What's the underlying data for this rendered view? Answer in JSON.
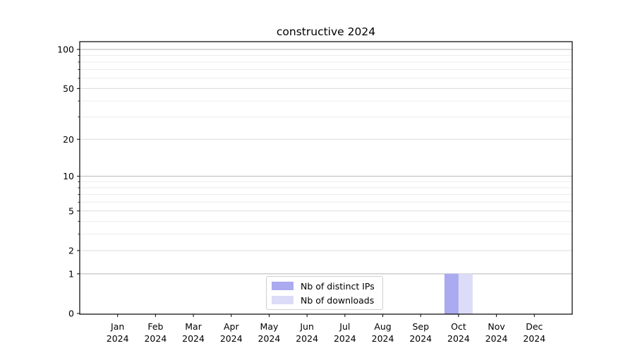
{
  "chart_data": {
    "type": "bar",
    "title": "constructive 2024",
    "categories": [
      "Jan",
      "Feb",
      "Mar",
      "Apr",
      "May",
      "Jun",
      "Jul",
      "Aug",
      "Sep",
      "Oct",
      "Nov",
      "Dec"
    ],
    "year_label": "2024",
    "series": [
      {
        "name": "Nb of distinct IPs",
        "color": "#aaaaf0",
        "values": [
          0,
          0,
          0,
          0,
          0,
          0,
          0,
          0,
          0,
          1,
          0,
          0
        ]
      },
      {
        "name": "Nb of downloads",
        "color": "#dcdcf8",
        "values": [
          0,
          0,
          0,
          0,
          0,
          0,
          0,
          0,
          0,
          1,
          0,
          0
        ]
      }
    ],
    "xlabel": "",
    "ylabel": "",
    "yscale": "log1p",
    "ylim": [
      0,
      115
    ],
    "y_ticks_labeled": [
      0,
      1,
      2,
      5,
      10,
      20,
      50,
      100
    ],
    "y_ticks_power": [
      1,
      10,
      100
    ],
    "y_ticks_minor": [
      3,
      4,
      6,
      7,
      8,
      9,
      30,
      40,
      60,
      70,
      80,
      90
    ],
    "grid": "horizontal-only",
    "legend_position": "lower-center-inside",
    "colors": {
      "grid_power": "#b5b5b5",
      "grid_major": "#dcdcdc",
      "grid_minor": "#ececec",
      "axis": "#000000",
      "text": "#000000",
      "background": "#ffffff"
    }
  }
}
